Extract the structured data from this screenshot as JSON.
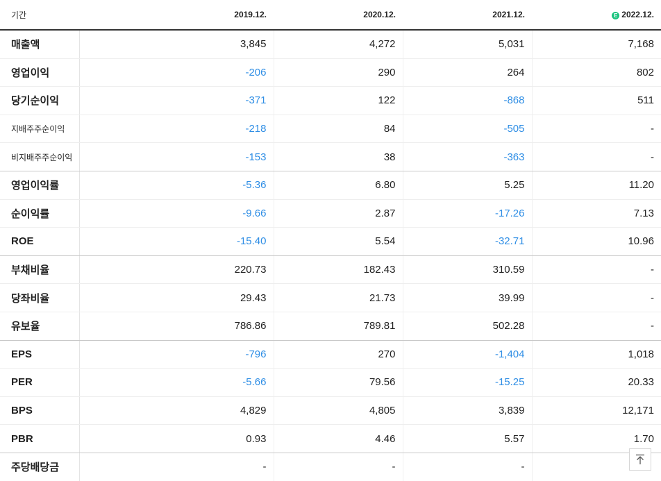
{
  "header": {
    "label": "기간",
    "years": [
      "2019.12.",
      "2020.12.",
      "2021.12.",
      "2022.12."
    ],
    "estimate_marker": "E"
  },
  "rows": [
    {
      "label": "매출액",
      "values": [
        "3,845",
        "4,272",
        "5,031",
        "7,168"
      ]
    },
    {
      "label": "영업이익",
      "values": [
        "-206",
        "290",
        "264",
        "802"
      ]
    },
    {
      "label": "당기순이익",
      "values": [
        "-371",
        "122",
        "-868",
        "511"
      ]
    },
    {
      "label": "지배주주순이익",
      "values": [
        "-218",
        "84",
        "-505",
        "-"
      ]
    },
    {
      "label": "비지배주주순이익",
      "values": [
        "-153",
        "38",
        "-363",
        "-"
      ]
    },
    {
      "label": "영업이익률",
      "values": [
        "-5.36",
        "6.80",
        "5.25",
        "11.20"
      ]
    },
    {
      "label": "순이익률",
      "values": [
        "-9.66",
        "2.87",
        "-17.26",
        "7.13"
      ]
    },
    {
      "label": "ROE",
      "values": [
        "-15.40",
        "5.54",
        "-32.71",
        "10.96"
      ]
    },
    {
      "label": "부채비율",
      "values": [
        "220.73",
        "182.43",
        "310.59",
        "-"
      ]
    },
    {
      "label": "당좌비율",
      "values": [
        "29.43",
        "21.73",
        "39.99",
        "-"
      ]
    },
    {
      "label": "유보율",
      "values": [
        "786.86",
        "789.81",
        "502.28",
        "-"
      ]
    },
    {
      "label": "EPS",
      "values": [
        "-796",
        "270",
        "-1,404",
        "1,018"
      ]
    },
    {
      "label": "PER",
      "values": [
        "-5.66",
        "79.56",
        "-15.25",
        "20.33"
      ]
    },
    {
      "label": "BPS",
      "values": [
        "4,829",
        "4,805",
        "3,839",
        "12,171"
      ]
    },
    {
      "label": "PBR",
      "values": [
        "0.93",
        "4.46",
        "5.57",
        "1.70"
      ]
    },
    {
      "label": "주당배당금",
      "values": [
        "-",
        "-",
        "-",
        ""
      ]
    }
  ],
  "colors": {
    "negative": "#2f8ee5",
    "estimate": "#19c37d",
    "text": "#222222"
  },
  "icons": {
    "scroll_top": "arrow-up-icon"
  }
}
